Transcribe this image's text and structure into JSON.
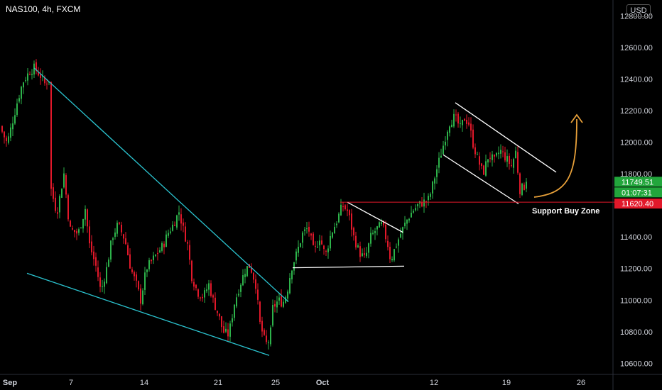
{
  "header": {
    "symbol": "NAS100, 4h, FXCM",
    "currency": "USD"
  },
  "colors": {
    "up": "#2db24a",
    "down": "#e2182a",
    "wedge_line": "#2bc4d0",
    "channel_line": "#ffffff",
    "support_line": "#e2182a",
    "arrow": "#e8a13a",
    "price_tag": "#22a63c",
    "support_tag": "#e2182a"
  },
  "chart_data": {
    "type": "candlestick",
    "ylim": [
      10530,
      12900
    ],
    "yticks": [
      10600,
      10800,
      11000,
      11200,
      11400,
      11600,
      11800,
      12000,
      12200,
      12400,
      12600,
      12800
    ],
    "ytick_labels": [
      "10600.00",
      "10800.00",
      "11000.00",
      "11200.00",
      "11400.00",
      "11600.00",
      "11800.00",
      "12000.00",
      "12200.00",
      "12400.00",
      "12600.00",
      "12800.00"
    ],
    "x_labels": [
      {
        "label": "Sep",
        "bold": true
      },
      {
        "label": "7",
        "bold": false
      },
      {
        "label": "14",
        "bold": false
      },
      {
        "label": "21",
        "bold": false
      },
      {
        "label": "25",
        "bold": false
      },
      {
        "label": "Oct",
        "bold": true
      },
      {
        "label": "12",
        "bold": false
      },
      {
        "label": "19",
        "bold": false
      },
      {
        "label": "26",
        "bold": false
      }
    ],
    "price_path": [
      [
        0,
        12100
      ],
      [
        10,
        11990
      ],
      [
        24,
        12250
      ],
      [
        32,
        12380
      ],
      [
        42,
        12450
      ],
      [
        48,
        12470
      ],
      [
        57,
        12420
      ],
      [
        63,
        12370
      ],
      [
        70,
        12400
      ],
      [
        72,
        11700
      ],
      [
        80,
        11550
      ],
      [
        90,
        11800
      ],
      [
        98,
        11450
      ],
      [
        110,
        11420
      ],
      [
        120,
        11580
      ],
      [
        126,
        11350
      ],
      [
        136,
        11200
      ],
      [
        142,
        11050
      ],
      [
        150,
        11200
      ],
      [
        158,
        11400
      ],
      [
        166,
        11480
      ],
      [
        176,
        11380
      ],
      [
        184,
        11200
      ],
      [
        192,
        11100
      ],
      [
        198,
        11000
      ],
      [
        206,
        11200
      ],
      [
        214,
        11250
      ],
      [
        222,
        11300
      ],
      [
        230,
        11350
      ],
      [
        236,
        11420
      ],
      [
        244,
        11480
      ],
      [
        252,
        11560
      ],
      [
        258,
        11450
      ],
      [
        264,
        11350
      ],
      [
        270,
        11150
      ],
      [
        278,
        11050
      ],
      [
        286,
        11020
      ],
      [
        294,
        11100
      ],
      [
        300,
        11000
      ],
      [
        308,
        10900
      ],
      [
        314,
        10800
      ],
      [
        322,
        10780
      ],
      [
        330,
        10980
      ],
      [
        338,
        11100
      ],
      [
        346,
        11200
      ],
      [
        352,
        11220
      ],
      [
        360,
        11100
      ],
      [
        366,
        10850
      ],
      [
        374,
        10720
      ],
      [
        380,
        10750
      ],
      [
        384,
        10950
      ],
      [
        392,
        11000
      ],
      [
        398,
        10980
      ],
      [
        404,
        11050
      ],
      [
        410,
        11200
      ],
      [
        418,
        11300
      ],
      [
        426,
        11420
      ],
      [
        434,
        11460
      ],
      [
        442,
        11300
      ],
      [
        450,
        11400
      ],
      [
        458,
        11280
      ],
      [
        466,
        11420
      ],
      [
        474,
        11500
      ],
      [
        482,
        11600
      ],
      [
        490,
        11560
      ],
      [
        498,
        11400
      ],
      [
        506,
        11300
      ],
      [
        514,
        11260
      ],
      [
        522,
        11400
      ],
      [
        530,
        11450
      ],
      [
        538,
        11480
      ],
      [
        546,
        11350
      ],
      [
        550,
        11250
      ],
      [
        556,
        11330
      ],
      [
        564,
        11420
      ],
      [
        572,
        11500
      ],
      [
        580,
        11560
      ],
      [
        588,
        11600
      ],
      [
        596,
        11620
      ],
      [
        604,
        11640
      ],
      [
        612,
        11780
      ],
      [
        618,
        11880
      ],
      [
        624,
        11980
      ],
      [
        628,
        12050
      ],
      [
        632,
        12120
      ],
      [
        640,
        12160
      ],
      [
        648,
        12090
      ],
      [
        654,
        12150
      ],
      [
        660,
        12120
      ],
      [
        666,
        11990
      ],
      [
        672,
        11900
      ],
      [
        680,
        11800
      ],
      [
        688,
        11920
      ],
      [
        696,
        11880
      ],
      [
        704,
        11950
      ],
      [
        712,
        11900
      ],
      [
        720,
        11850
      ],
      [
        726,
        11940
      ],
      [
        732,
        11700
      ],
      [
        738,
        11720
      ],
      [
        742,
        11749.51
      ]
    ],
    "wedge_upper": [
      [
        48,
        12470
      ],
      [
        406,
        10990
      ]
    ],
    "wedge_lower": [
      [
        38,
        11170
      ],
      [
        379,
        10650
      ]
    ],
    "channel_1_upper": [
      [
        489,
        11620
      ],
      [
        567,
        11430
      ]
    ],
    "channel_1_lower": [
      [
        412,
        11205
      ],
      [
        569,
        11215
      ]
    ],
    "channel_2_upper": [
      [
        641,
        12250
      ],
      [
        783,
        11810
      ]
    ],
    "channel_2_lower": [
      [
        624,
        11920
      ],
      [
        730,
        11610
      ]
    ],
    "support_level": 11620.4,
    "support_line_x": [
      479,
      865
    ],
    "annotation": "Support Buy Zone",
    "price_tag": "11749.51",
    "countdown_tag": "01:07:31",
    "support_tag": "11620.40"
  }
}
